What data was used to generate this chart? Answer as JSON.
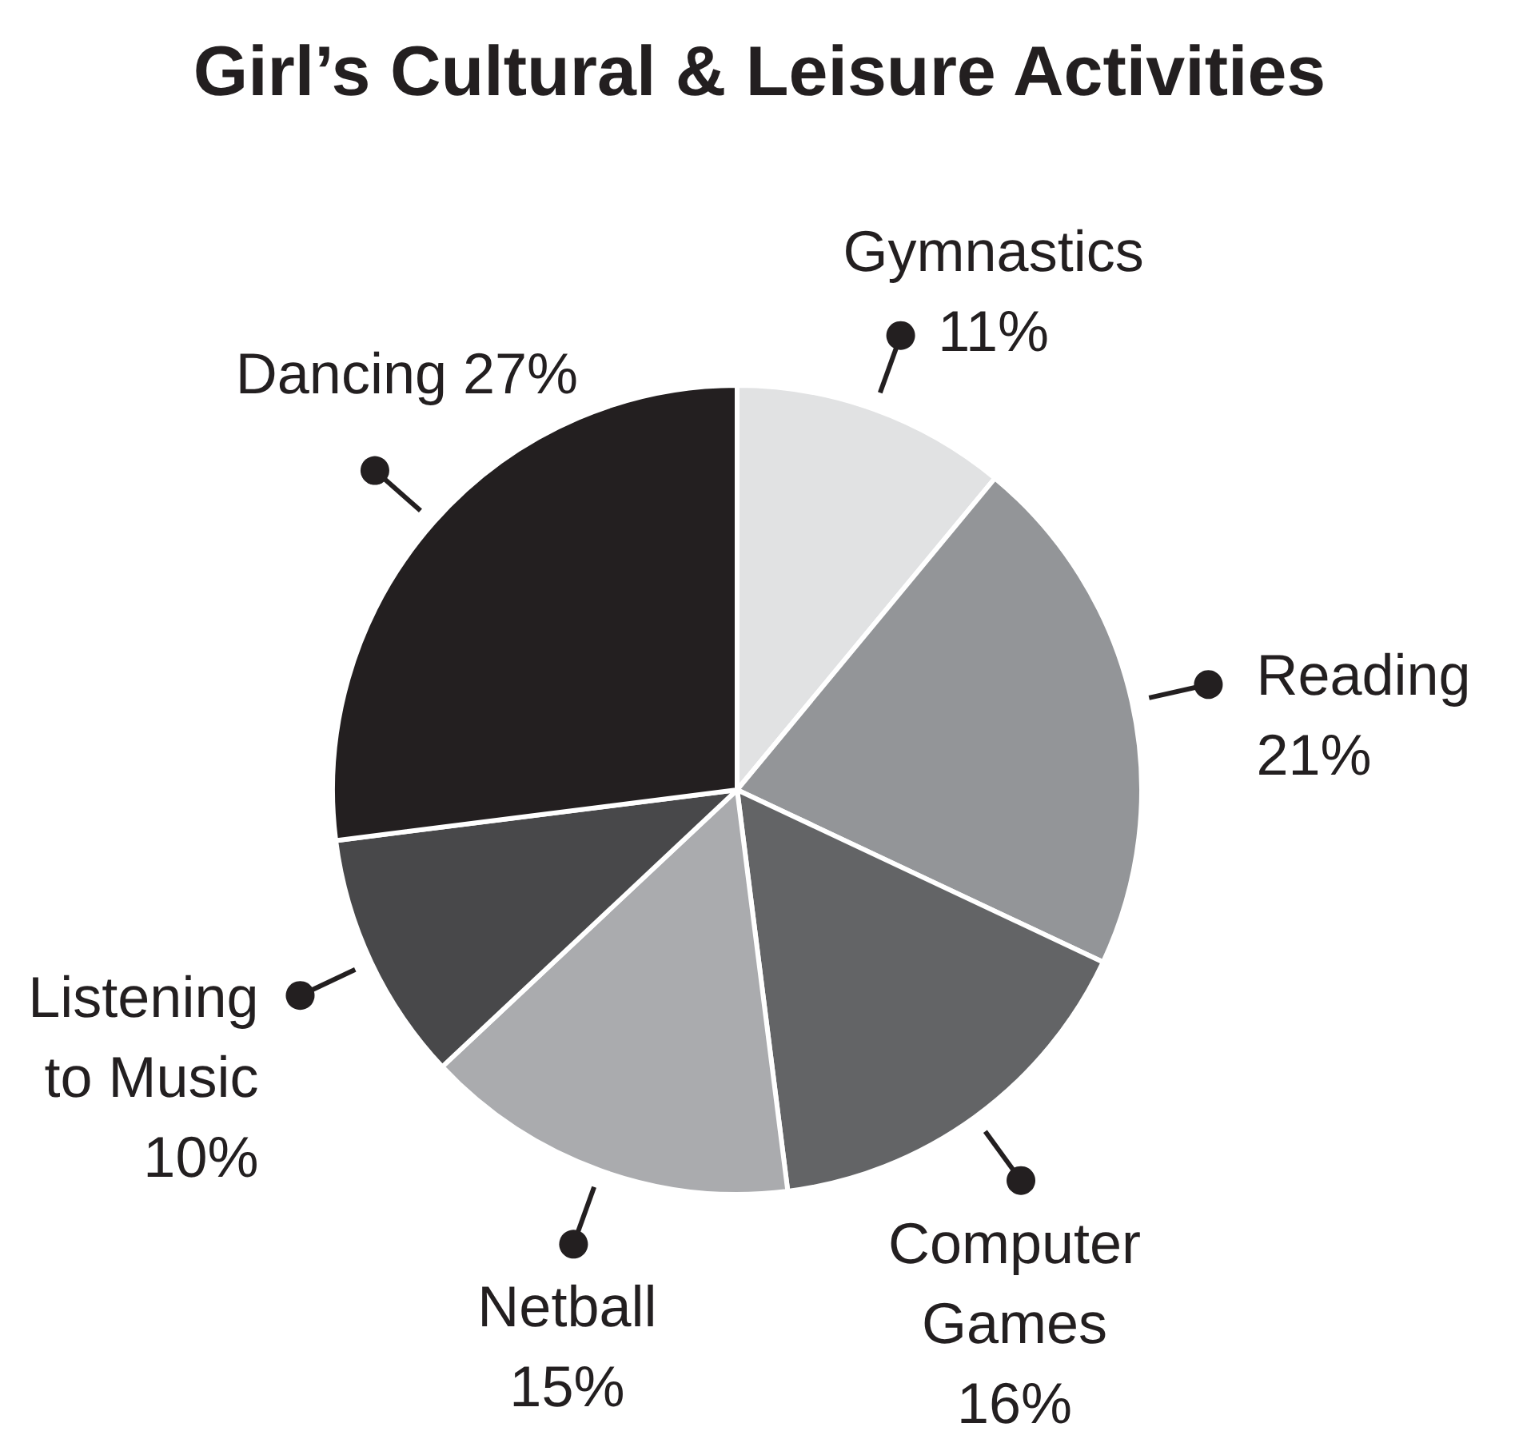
{
  "chart_data": {
    "type": "pie",
    "title": "Girl’s Cultural & Leisure Activities",
    "categories": [
      "Gymnastics",
      "Reading",
      "Computer Games",
      "Netball",
      "Listening to Music",
      "Dancing"
    ],
    "values": [
      11,
      21,
      16,
      15,
      10,
      27
    ],
    "value_labels": [
      "11%",
      "21%",
      "16%",
      "15%",
      "10%",
      "27%"
    ],
    "colors": [
      "#e1e2e3",
      "#939598",
      "#636466",
      "#aaabae",
      "#48484a",
      "#231f20"
    ]
  }
}
